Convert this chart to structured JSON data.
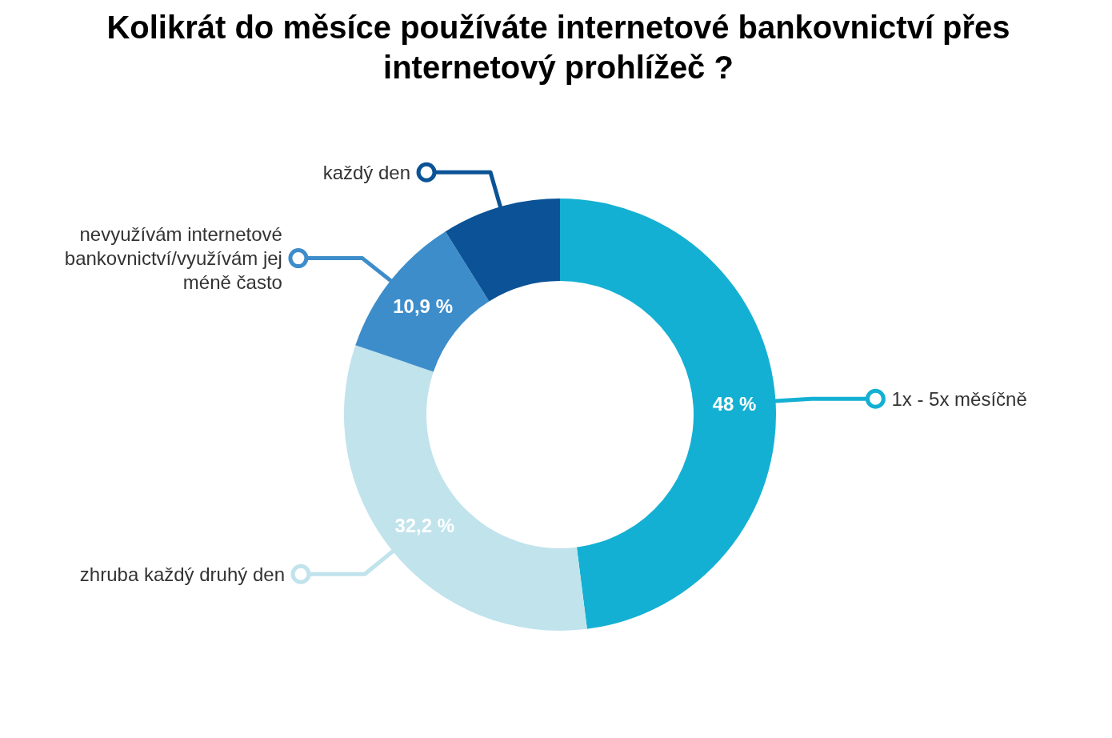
{
  "chart_data": {
    "type": "donut",
    "title": "Kolikrát do měsíce používáte internetové bankovnictví přes internetový prohlížeč ?",
    "categories": [
      "1x - 5x měsíčně",
      "zhruba každý druhý den",
      "nevyužívám internetové bankovnictví/využívám jej méně často",
      "každý den"
    ],
    "values": [
      48,
      32.2,
      10.9,
      8.9
    ],
    "colors": [
      "#14b0d3",
      "#c0e3ec",
      "#3d8dcb",
      "#0b5396"
    ],
    "value_labels": [
      "48 %",
      "32,2 %",
      "10,9 %",
      null
    ],
    "legend": "left"
  }
}
